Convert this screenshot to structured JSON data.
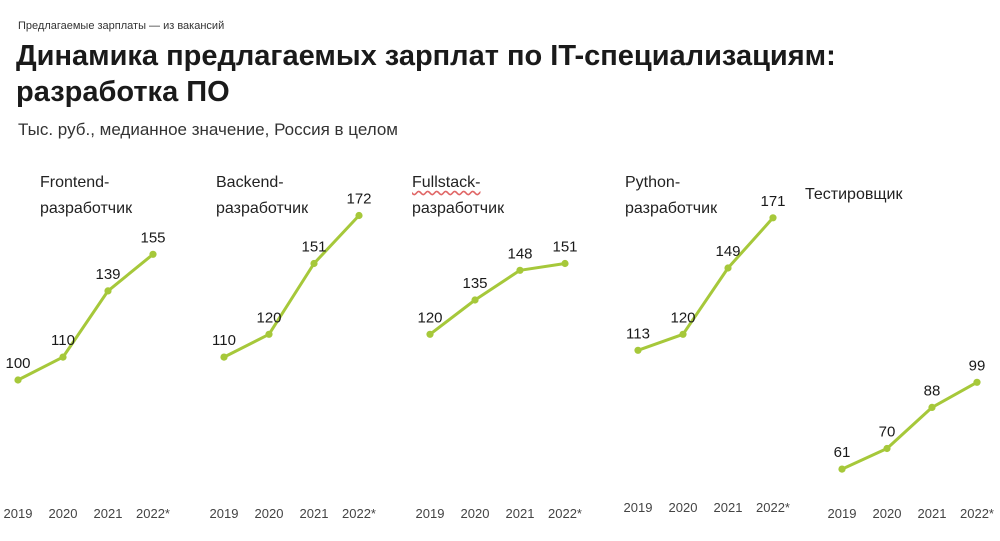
{
  "header": {
    "kicker": "Предлагаемые зарплаты — из вакансий",
    "title": "Динамика предлагаемых зарплат по IT-специализациям: разработка ПО",
    "subtitle": "Тыс. руб., медианное значение, Россия в целом"
  },
  "chart_data": {
    "type": "line",
    "line_color": "#a6c83a",
    "categories": [
      "2019",
      "2020",
      "2021",
      "2022*"
    ],
    "ylabel": "Тыс. руб., медианное значение, Россия в целом",
    "series": [
      {
        "name": "Frontend-разработчик",
        "label_lines": [
          "Frontend-",
          "разработчик"
        ],
        "values": [
          100,
          110,
          139,
          155
        ]
      },
      {
        "name": "Backend-разработчик",
        "label_lines": [
          "Backend-",
          "разработчик"
        ],
        "values": [
          110,
          120,
          151,
          172
        ]
      },
      {
        "name": "Fullstack-разработчик",
        "label_lines": [
          "Fullstack-",
          "разработчик"
        ],
        "values": [
          120,
          135,
          148,
          151
        ]
      },
      {
        "name": "Python-разработчик",
        "label_lines": [
          "Python-",
          "разработчик"
        ],
        "values": [
          113,
          120,
          149,
          171
        ]
      },
      {
        "name": "Тестировщик",
        "label_lines": [
          "Тестировщик"
        ],
        "values": [
          61,
          70,
          88,
          99
        ]
      }
    ]
  }
}
